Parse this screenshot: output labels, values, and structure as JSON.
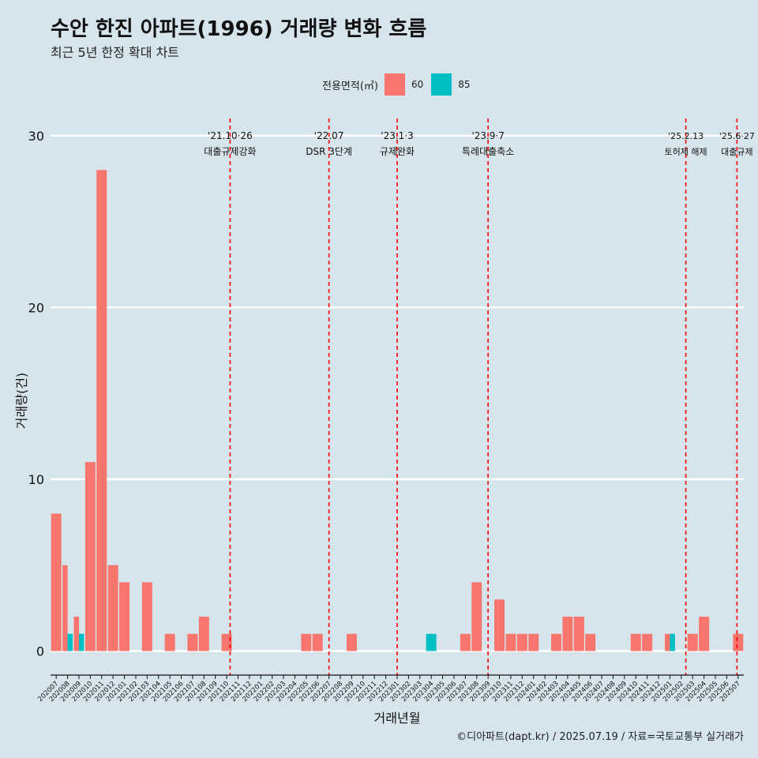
{
  "title": "수안 한진 아파트(1996) 거래량 변화 흐름",
  "subtitle": "최근 5년 한정 확대 차트",
  "caption": "©디아파트(dapt.kr) / 2025.07.19 / 자료=국토교통부 실거래가",
  "legend": {
    "title": "전용면적(㎡)",
    "items": [
      {
        "label": "60",
        "color": "#f8766d"
      },
      {
        "label": "85",
        "color": "#00bfc4"
      }
    ]
  },
  "chart_data": {
    "type": "bar",
    "xlabel": "거래년월",
    "ylabel": "거래량(건)",
    "ylim": [
      -1.4,
      31
    ],
    "yticks": [
      0,
      10,
      20,
      30
    ],
    "categories": [
      "202007",
      "202008",
      "202009",
      "202010",
      "202011",
      "202012",
      "202101",
      "202102",
      "202103",
      "202104",
      "202105",
      "202106",
      "202107",
      "202108",
      "202109",
      "202110",
      "202111",
      "202112",
      "202201",
      "202202",
      "202203",
      "202204",
      "202205",
      "202206",
      "202207",
      "202208",
      "202209",
      "202210",
      "202211",
      "202212",
      "202301",
      "202302",
      "202303",
      "202304",
      "202305",
      "202306",
      "202307",
      "202308",
      "202309",
      "202310",
      "202311",
      "202312",
      "202401",
      "202402",
      "202403",
      "202404",
      "202405",
      "202406",
      "202407",
      "202408",
      "202409",
      "202410",
      "202411",
      "202412",
      "202501",
      "202502",
      "202503",
      "202504",
      "202505",
      "202506",
      "202507"
    ],
    "series": [
      {
        "name": "60",
        "color": "#f8766d",
        "values": [
          8,
          5,
          2,
          11,
          28,
          5,
          4,
          0,
          4,
          0,
          1,
          0,
          1,
          2,
          0,
          1,
          0,
          0,
          0,
          0,
          0,
          0,
          1,
          1,
          0,
          0,
          1,
          0,
          0,
          0,
          0,
          0,
          0,
          0,
          0,
          0,
          1,
          4,
          0,
          3,
          1,
          1,
          1,
          0,
          1,
          2,
          2,
          1,
          0,
          0,
          0,
          1,
          1,
          0,
          1,
          0,
          1,
          2,
          0,
          0,
          1
        ]
      },
      {
        "name": "85",
        "color": "#00bfc4",
        "values": [
          0,
          1,
          1,
          0,
          0,
          0,
          0,
          0,
          0,
          0,
          0,
          0,
          0,
          0,
          0,
          0,
          0,
          0,
          0,
          0,
          0,
          0,
          0,
          0,
          0,
          0,
          0,
          0,
          0,
          0,
          0,
          0,
          0,
          1,
          0,
          0,
          0,
          0,
          0,
          0,
          0,
          0,
          0,
          0,
          0,
          0,
          0,
          0,
          0,
          0,
          0,
          0,
          0,
          0,
          1,
          0,
          0,
          0,
          0,
          0,
          0
        ]
      }
    ],
    "events": [
      {
        "date": "'21.10·26",
        "label": "대출규제강화",
        "at": "202110",
        "offset": 0.3
      },
      {
        "date": "'22.07",
        "label": "DSR 3단계",
        "at": "202207",
        "offset": 0
      },
      {
        "date": "'23.1·3",
        "label": "규제완화",
        "at": "202301",
        "offset": 0
      },
      {
        "date": "'23.9·7",
        "label": "특례대출축소",
        "at": "202309",
        "offset": 0
      },
      {
        "date": "'25.2.13",
        "label": "토허제 해제",
        "at": "202502",
        "offset": 0.4
      },
      {
        "date": "'25.6·27",
        "label": "대출규제",
        "at": "202506",
        "offset": 0.9
      }
    ],
    "grid": true,
    "legend_position": "top"
  }
}
